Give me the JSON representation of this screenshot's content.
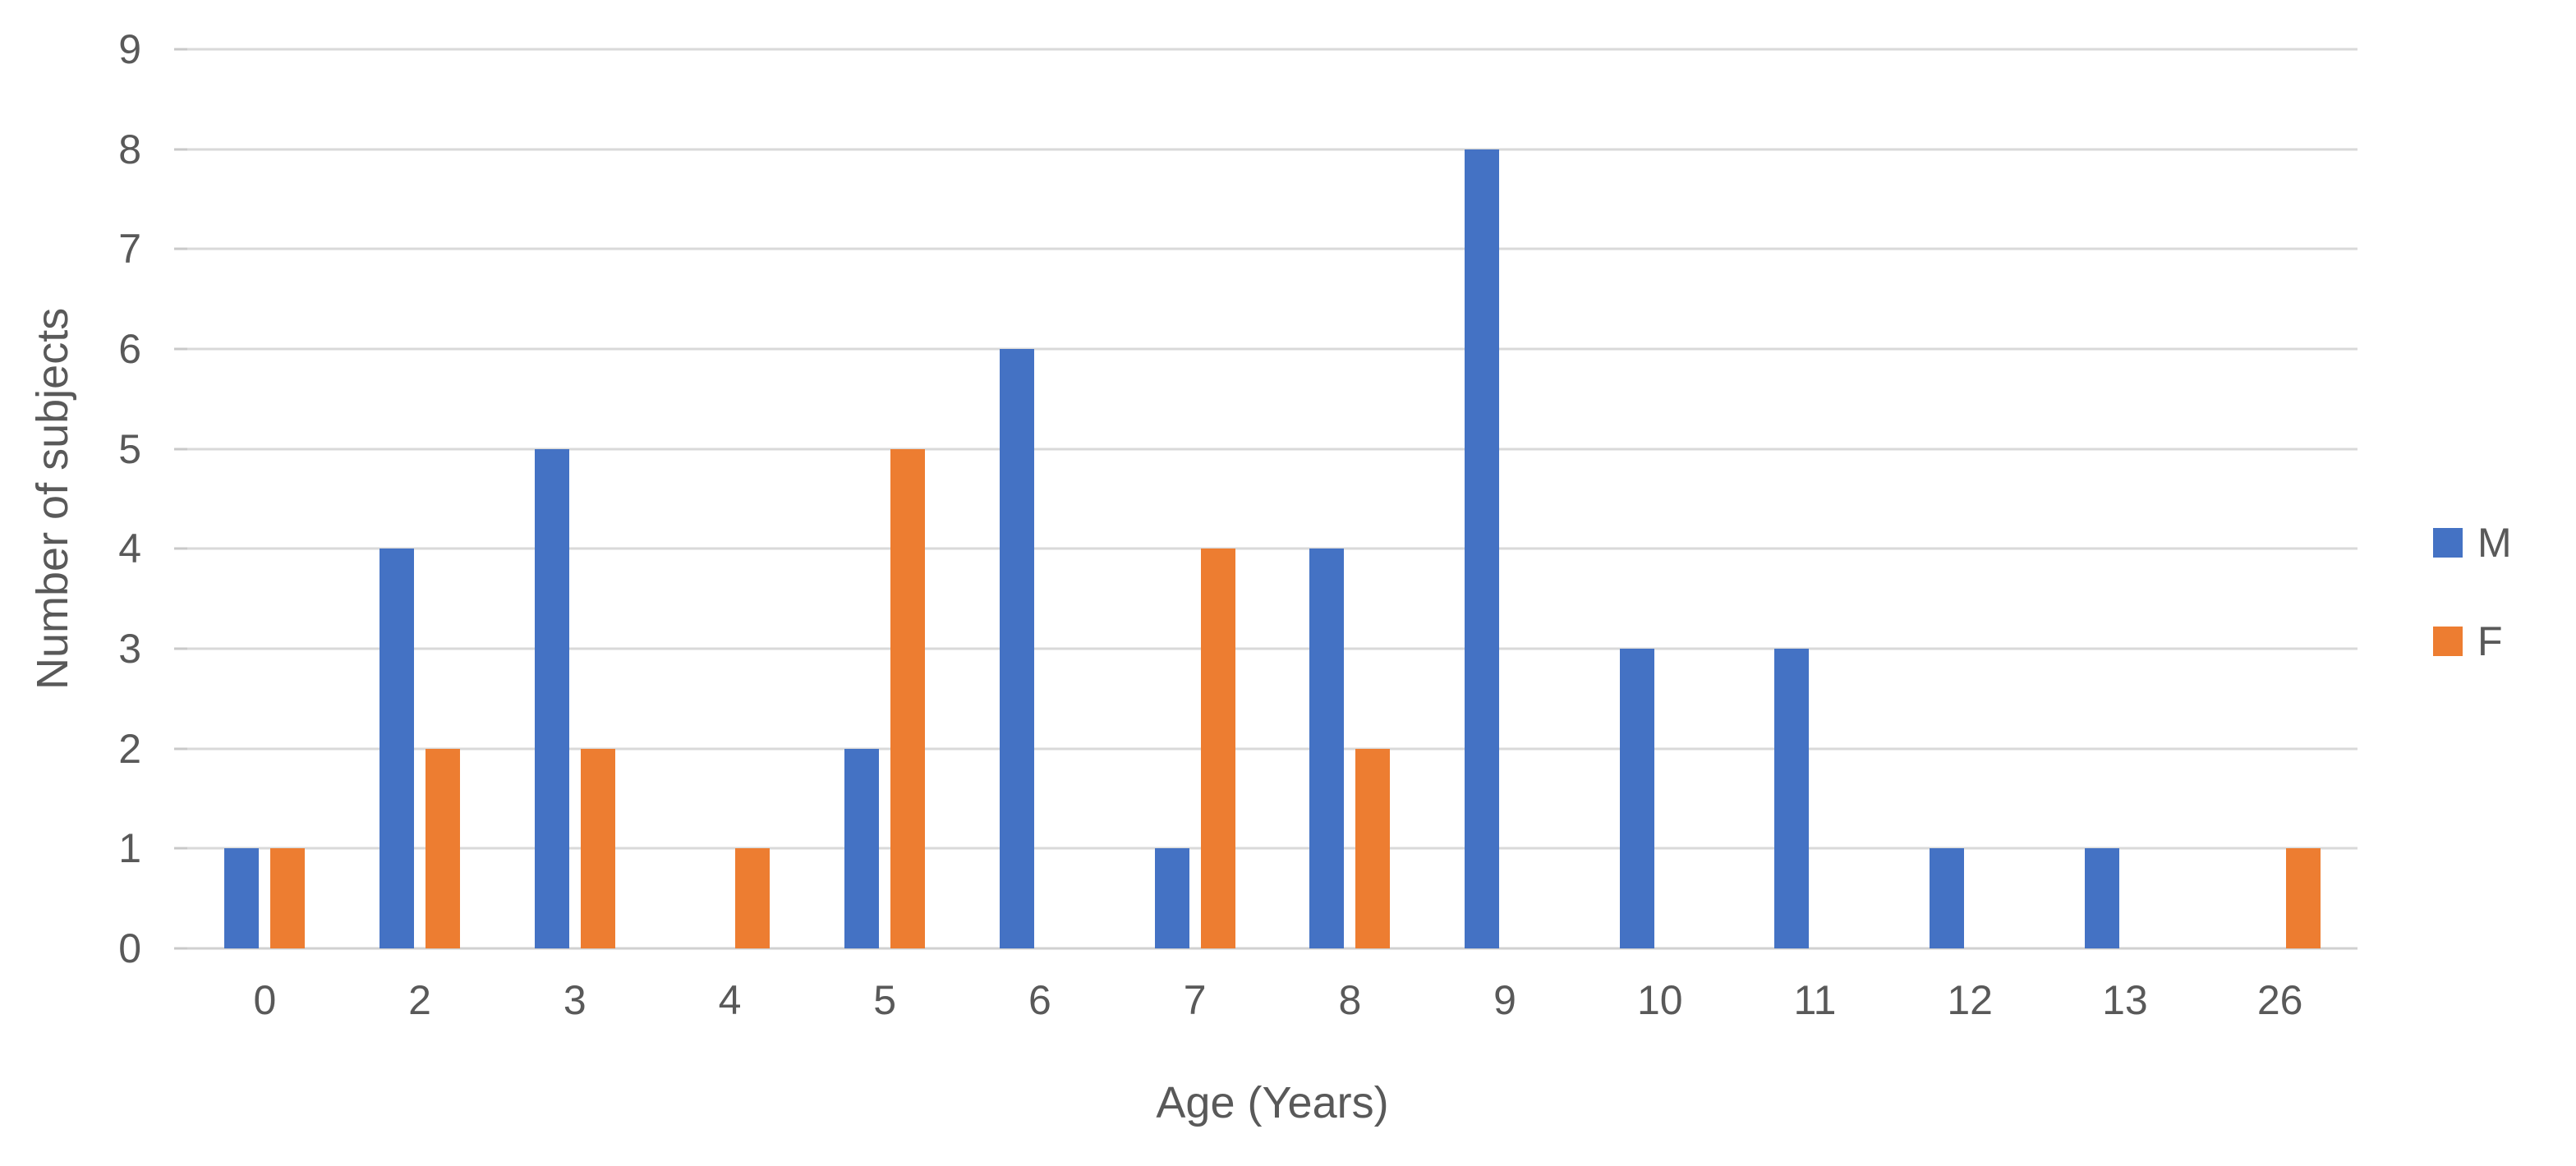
{
  "chart_data": {
    "type": "bar",
    "title": "",
    "xlabel": "Age (Years)",
    "ylabel": "Number of subjects",
    "categories": [
      "0",
      "2",
      "3",
      "4",
      "5",
      "6",
      "7",
      "8",
      "9",
      "10",
      "11",
      "12",
      "13",
      "26"
    ],
    "series": [
      {
        "name": "M",
        "color": "#4472C4",
        "values": [
          1,
          4,
          5,
          0,
          2,
          6,
          1,
          4,
          8,
          3,
          3,
          1,
          1,
          0
        ]
      },
      {
        "name": "F",
        "color": "#ED7D31",
        "values": [
          1,
          2,
          2,
          1,
          5,
          0,
          4,
          2,
          0,
          0,
          0,
          0,
          0,
          1
        ]
      }
    ],
    "y_axis": {
      "min": 0,
      "max": 9,
      "step": 1,
      "ticks": [
        0,
        1,
        2,
        3,
        4,
        5,
        6,
        7,
        8,
        9
      ]
    },
    "legend": {
      "position": "right",
      "entries": [
        "M",
        "F"
      ]
    },
    "grid": true,
    "colors": {
      "gridline": "#D9D9D9",
      "text": "#595959",
      "background": "#FFFFFF"
    }
  }
}
